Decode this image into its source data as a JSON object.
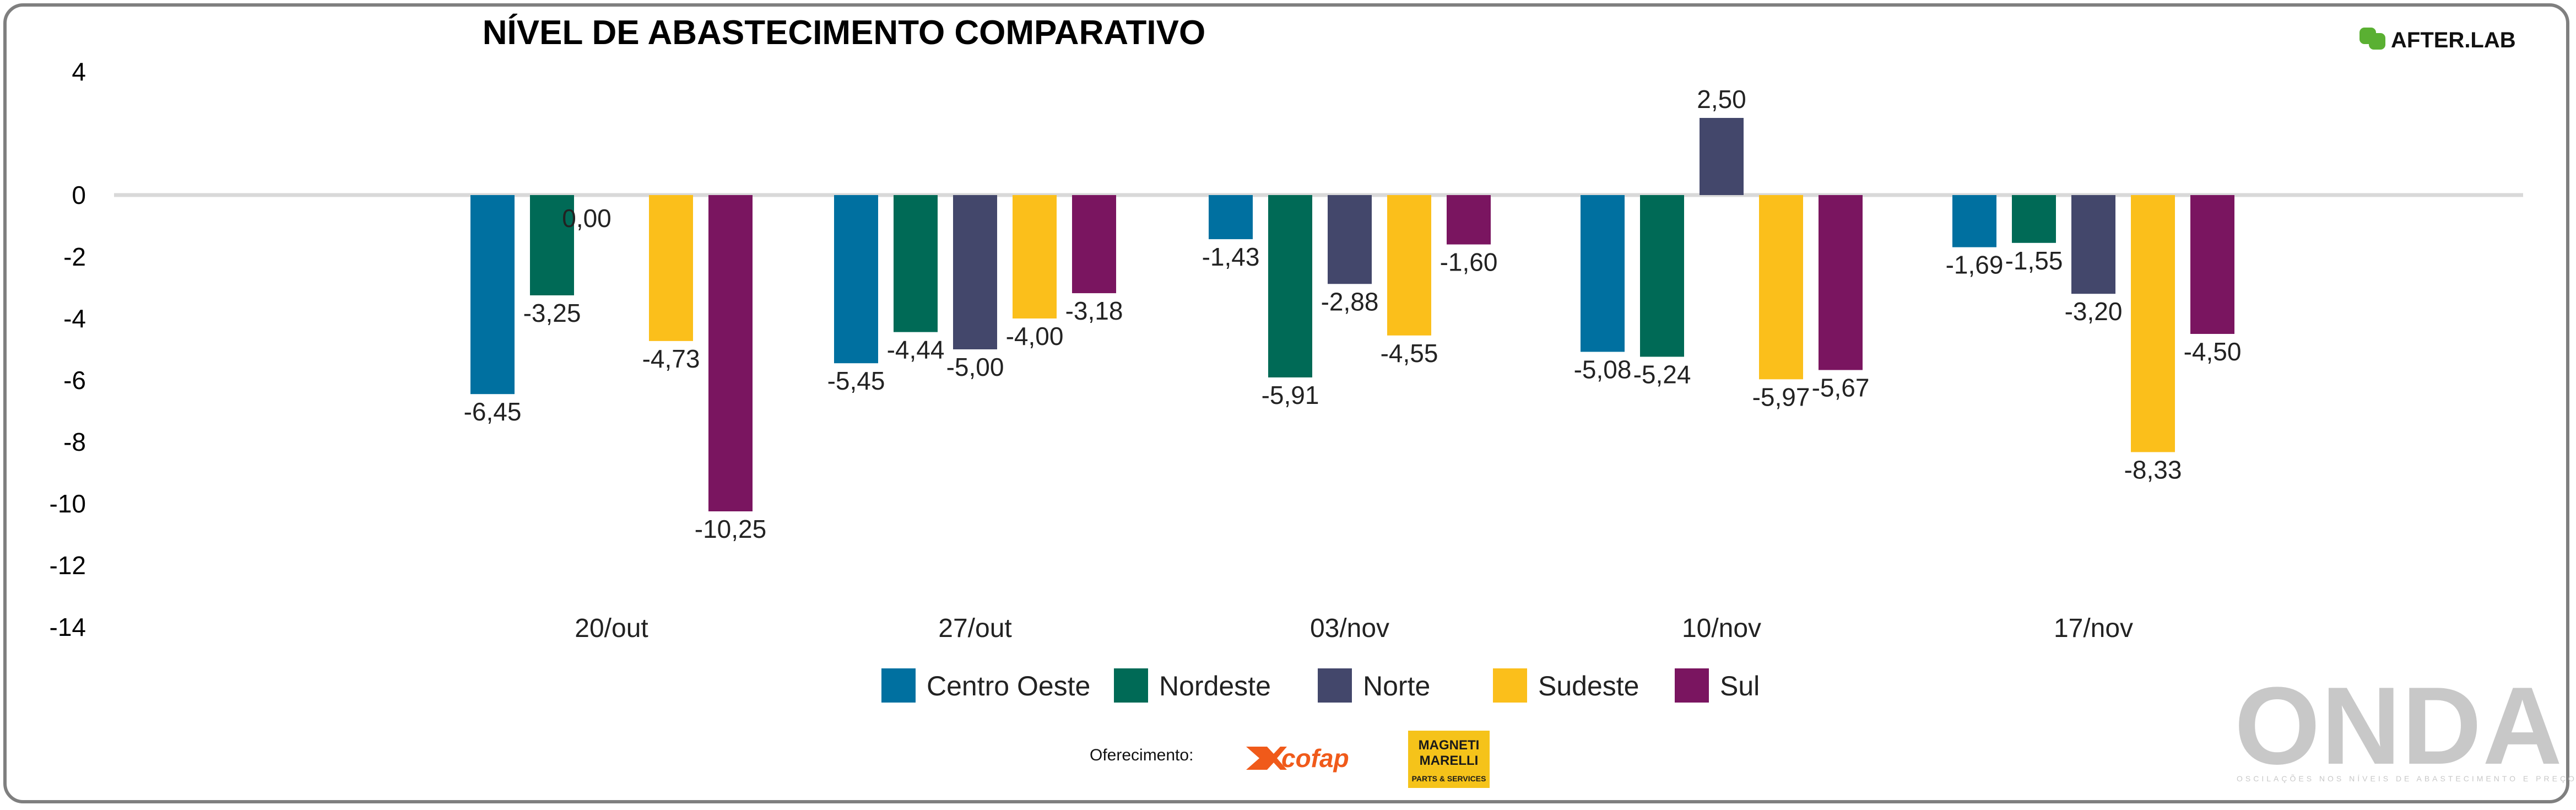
{
  "chart_data": {
    "type": "bar",
    "title": "NÍVEL DE ABASTECIMENTO COMPARATIVO",
    "categories": [
      "20/out",
      "27/out",
      "03/nov",
      "10/nov",
      "17/nov"
    ],
    "series": [
      {
        "name": "Centro Oeste",
        "color": "#0070a0",
        "values": [
          -6.45,
          -5.45,
          -1.43,
          -5.08,
          -1.69
        ],
        "labels": [
          "-6,45",
          "-5,45",
          "-1,43",
          "-5,08",
          "-1,69"
        ]
      },
      {
        "name": "Nordeste",
        "color": "#006a56",
        "values": [
          -3.25,
          -4.44,
          -5.91,
          -5.24,
          -1.55
        ],
        "labels": [
          "-3,25",
          "-4,44",
          "-5,91",
          "-5,24",
          "-1,55"
        ]
      },
      {
        "name": "Norte",
        "color": "#43476b",
        "values": [
          0.0,
          -5.0,
          -2.88,
          2.5,
          -3.2
        ],
        "labels": [
          "0,00",
          "-5,00",
          "-2,88",
          "2,50",
          "-3,20"
        ]
      },
      {
        "name": "Sudeste",
        "color": "#fbbf1b",
        "values": [
          -4.73,
          -4.0,
          -4.55,
          -5.97,
          -8.33
        ],
        "labels": [
          "-4,73",
          "-4,00",
          "-4,55",
          "-5,97",
          "-8,33"
        ]
      },
      {
        "name": "Sul",
        "color": "#7a1560",
        "values": [
          -10.25,
          -3.18,
          -1.6,
          -5.67,
          -4.5
        ],
        "labels": [
          "-10,25",
          "-3,18",
          "-1,60",
          "-5,67",
          "-4,50"
        ]
      }
    ],
    "ylim": [
      -14,
      4
    ],
    "yticks": [
      4,
      0,
      -2,
      -4,
      -6,
      -8,
      -10,
      -12,
      -14
    ],
    "legend_position": "bottom",
    "xlabel": "",
    "ylabel": ""
  },
  "branding": {
    "afterlab": "AFTER.LAB",
    "sponsor_label": "Oferecimento:",
    "cofap": "cofap",
    "magneti_line1": "MAGNETI",
    "magneti_line2": "MARELLI",
    "magneti_line3": "PARTS & SERVICES",
    "onda": "ONDA",
    "onda_tagline": "OSCILAÇÕES NOS NÍVEIS DE ABASTECIMENTO E PREÇOS"
  },
  "colors": {
    "frame": "#7f7f7f",
    "zero_line": "#d9d9d9",
    "afterlab_green": "#5ab032",
    "onda_gray": "#c8c8c8",
    "cofap_orange": "#f05a1a",
    "magneti_yellow": "#f5c31a"
  }
}
